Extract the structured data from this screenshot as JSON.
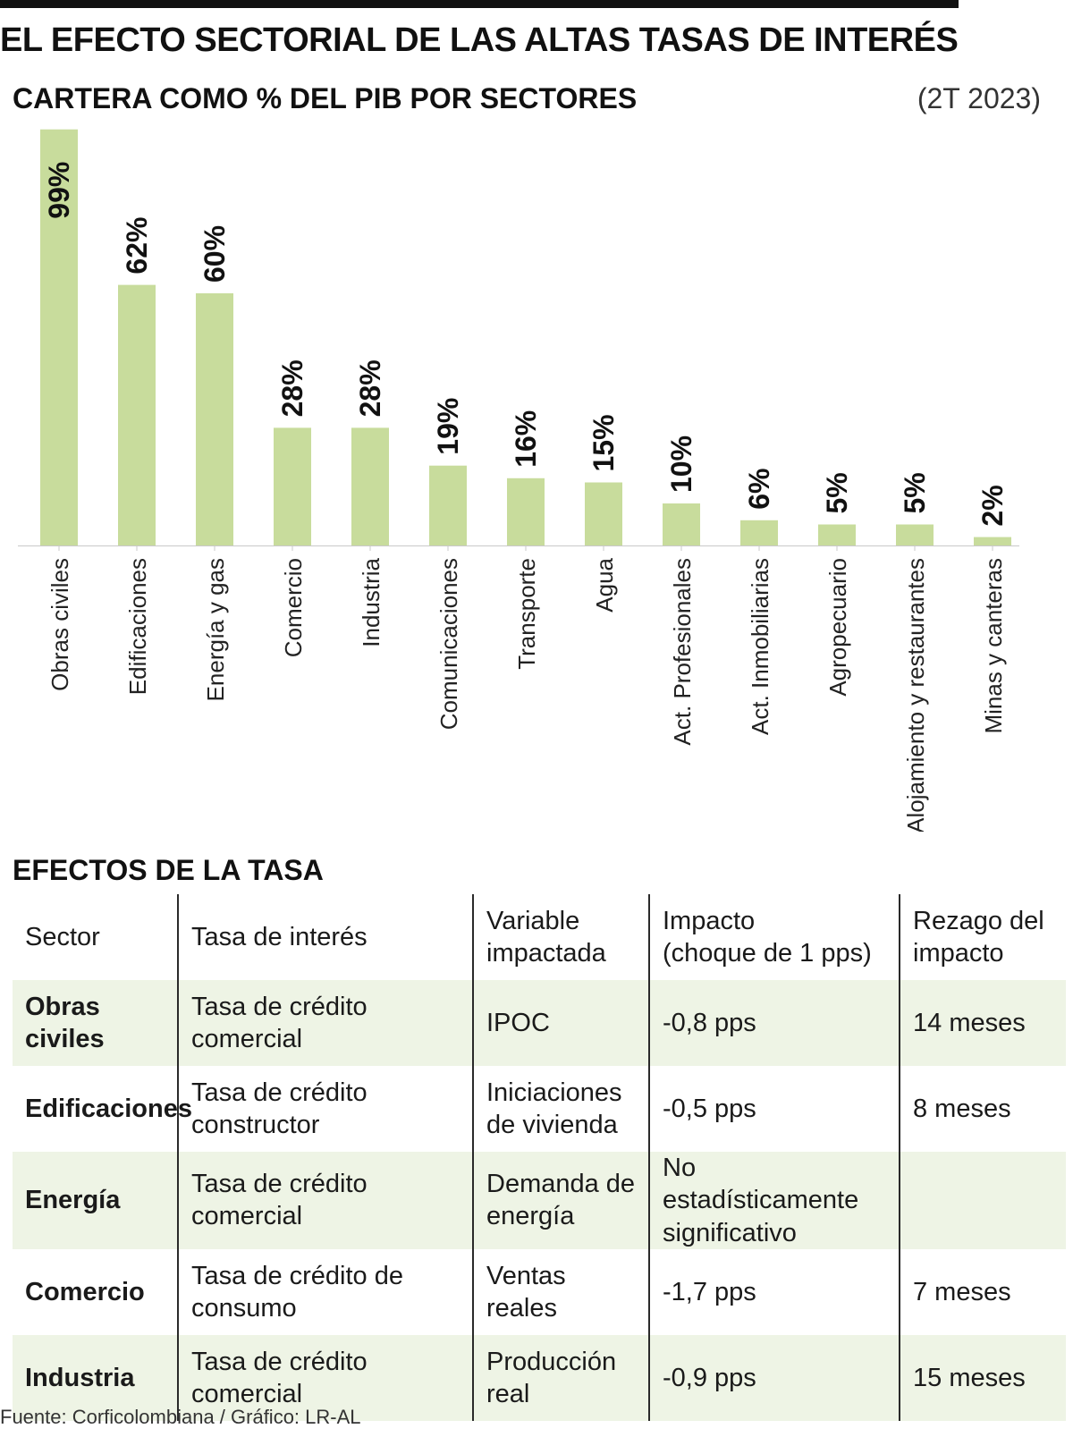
{
  "title": "EL EFECTO SECTORIAL DE LAS ALTAS TASAS DE INTERÉS",
  "subtitle": "CARTERA COMO % DEL PIB POR SECTORES",
  "period": "(2T 2023)",
  "bar_color": "#c8dc9c",
  "chart_data": {
    "type": "bar",
    "title": "CARTERA COMO % DEL PIB POR SECTORES",
    "subtitle": "(2T 2023)",
    "xlabel": "",
    "ylabel": "",
    "ylim": [
      0,
      100
    ],
    "categories": [
      "Obras civiles",
      "Edificaciones",
      "Energía y gas",
      "Comercio",
      "Industria",
      "Comunicaciones",
      "Transporte",
      "Agua",
      "Act. Profesionales",
      "Act. Inmobiliarias",
      "Agropecuario",
      "Alojamiento y restaurantes",
      "Minas y canteras"
    ],
    "values": [
      99,
      62,
      60,
      28,
      28,
      19,
      16,
      15,
      10,
      6,
      5,
      5,
      2
    ],
    "value_labels": [
      "99%",
      "62%",
      "60%",
      "28%",
      "28%",
      "19%",
      "16%",
      "15%",
      "10%",
      "6%",
      "5%",
      "5%",
      "2%"
    ]
  },
  "effects": {
    "title": "EFECTOS DE LA TASA",
    "headers": {
      "sector": "Sector",
      "rate": "Tasa de interés",
      "variable_1": "Variable",
      "variable_2": "impactada",
      "impact_1": "Impacto",
      "impact_2": "(choque de 1 pps)",
      "lag_1": "Rezago del",
      "lag_2": "impacto"
    },
    "rows": [
      {
        "sector": "Obras civiles",
        "rate": "Tasa de crédito comercial",
        "variable_1": "IPOC",
        "variable_2": "",
        "impact_1": "-0,8 pps",
        "impact_2": "",
        "lag": "14 meses"
      },
      {
        "sector": "Edificaciones",
        "rate": "Tasa de crédito constructor",
        "variable_1": "Iniciaciones",
        "variable_2": "de vivienda",
        "impact_1": "-0,5 pps",
        "impact_2": "",
        "lag": "8 meses"
      },
      {
        "sector": "Energía",
        "rate": "Tasa de crédito comercial",
        "variable_1": "Demanda de",
        "variable_2": "energía",
        "impact_1": "No estadísticamente",
        "impact_2": "significativo",
        "lag": ""
      },
      {
        "sector": "Comercio",
        "rate": "Tasa de crédito de consumo",
        "variable_1": "Ventas reales",
        "variable_2": "",
        "impact_1": "-1,7 pps",
        "impact_2": "",
        "lag": "7 meses"
      },
      {
        "sector": "Industria",
        "rate": "Tasa de crédito comercial",
        "variable_1": "Producción real",
        "variable_2": "",
        "impact_1": "-0,9 pps",
        "impact_2": "",
        "lag": "15 meses"
      }
    ]
  },
  "source": "Fuente: Corficolombiana / Gráfico: LR-AL"
}
